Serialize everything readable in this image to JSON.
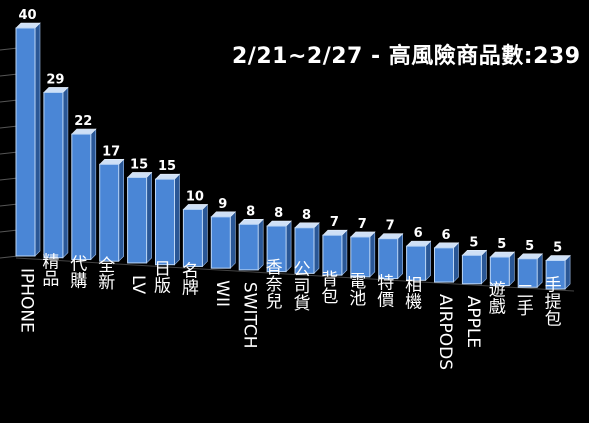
{
  "chart_data": {
    "type": "bar",
    "title": "2/21~2/27 - 高風險商品數:239",
    "categories": [
      "IPHONE",
      "精品",
      "代購",
      "全新",
      "LV",
      "日版",
      "名牌",
      "WII",
      "SWITCH",
      "香奈兒",
      "公司貨",
      "背包",
      "電池",
      "特價",
      "相機",
      "AIRPODS",
      "APPLE",
      "遊戲",
      "二手",
      "手提包"
    ],
    "values": [
      40,
      29,
      22,
      17,
      15,
      15,
      10,
      9,
      8,
      8,
      8,
      7,
      7,
      7,
      6,
      6,
      5,
      5,
      5,
      5
    ],
    "grid": true,
    "legend": "none",
    "bar_color": "#4a86d6",
    "bar_top_color": "#cfe0f6"
  }
}
